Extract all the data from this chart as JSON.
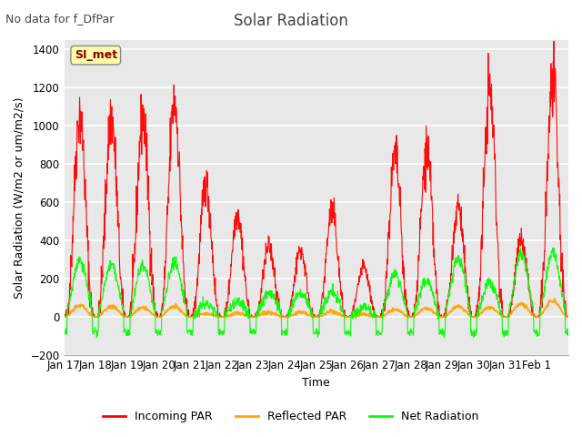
{
  "title": "Solar Radiation",
  "suptitle": "No data for f_DfPar",
  "ylabel": "Solar Radiation (W/m2 or um/m2/s)",
  "xlabel": "Time",
  "ylim": [
    -200,
    1450
  ],
  "yticks": [
    -200,
    0,
    200,
    400,
    600,
    800,
    1000,
    1200,
    1400
  ],
  "xtick_labels": [
    "Jan 17",
    "Jan 18",
    "Jan 19",
    "Jan 20",
    "Jan 21",
    "Jan 22",
    "Jan 23",
    "Jan 24",
    "Jan 25",
    "Jan 26",
    "Jan 27",
    "Jan 28",
    "Jan 29",
    "Jan 30",
    "Jan 31",
    "Feb 1"
  ],
  "legend_labels": [
    "Incoming PAR",
    "Reflected PAR",
    "Net Radiation"
  ],
  "legend_colors": [
    "red",
    "orange",
    "lime"
  ],
  "line_colors": [
    "red",
    "orange",
    "lime"
  ],
  "bg_color": "#e8e8e8",
  "grid_color": "white",
  "label_box_color": "#ffffaa",
  "label_box_text": "SI_met",
  "label_box_text_color": "#8b0000",
  "n_days": 16,
  "peaks_incoming": [
    1060,
    1040,
    1040,
    1130,
    690,
    540,
    370,
    350,
    560,
    260,
    840,
    860,
    580,
    1185,
    400,
    1220
  ],
  "peaks_net": [
    300,
    270,
    275,
    285,
    70,
    80,
    130,
    130,
    130,
    50,
    220,
    190,
    305,
    180,
    330,
    335
  ],
  "peaks_reflected": [
    60,
    55,
    50,
    55,
    20,
    20,
    25,
    25,
    30,
    15,
    40,
    45,
    55,
    50,
    70,
    85
  ]
}
